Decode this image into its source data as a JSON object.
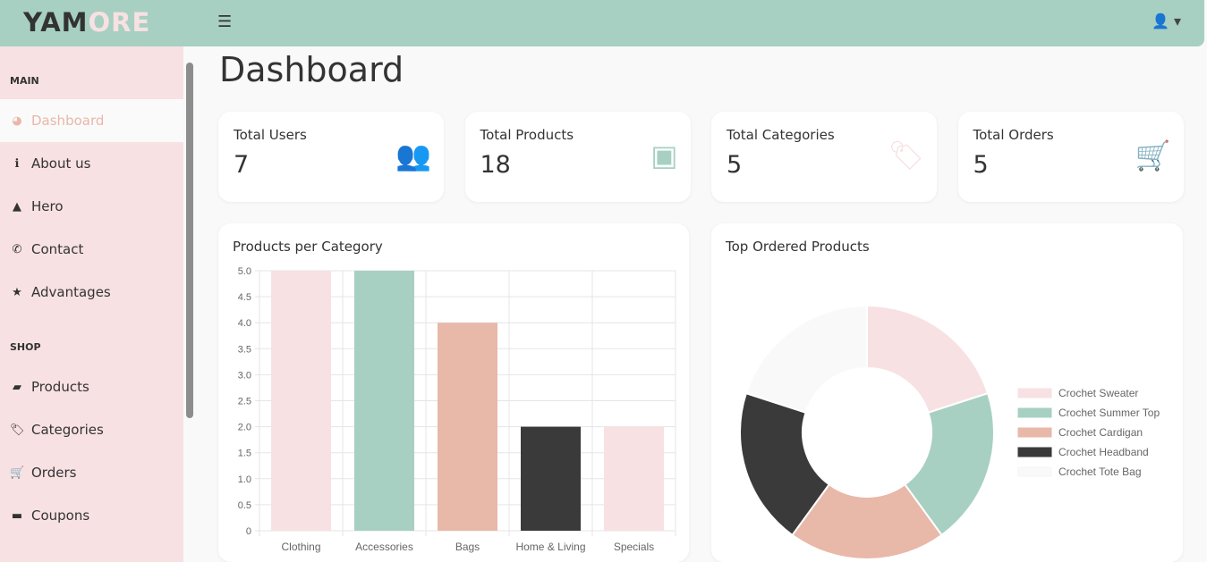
{
  "header": {
    "logo_a": "YAM",
    "logo_b": "ORE",
    "menu_icon": "☰",
    "user_icon": "👤 ▾"
  },
  "sidebar": {
    "sections": [
      {
        "title": "MAIN"
      },
      {
        "title": "SHOP"
      }
    ],
    "items": [
      {
        "label": "Dashboard",
        "icon": "◕"
      },
      {
        "label": "About us",
        "icon": "ℹ"
      },
      {
        "label": "Hero",
        "icon": "▲"
      },
      {
        "label": "Contact",
        "icon": "✆"
      },
      {
        "label": "Advantages",
        "icon": "★"
      },
      {
        "label": "Products",
        "icon": "▰"
      },
      {
        "label": "Categories",
        "icon": "🏷"
      },
      {
        "label": "Orders",
        "icon": "🛒"
      },
      {
        "label": "Coupons",
        "icon": "▬"
      }
    ]
  },
  "page": {
    "title": "Dashboard"
  },
  "stats": [
    {
      "label": "Total Users",
      "value": "7",
      "color": "#e8b8a8"
    },
    {
      "label": "Total Products",
      "value": "18",
      "color": "#a7d0c2"
    },
    {
      "label": "Total Categories",
      "value": "5",
      "color": "#f7e1e3"
    },
    {
      "label": "Total Orders",
      "value": "5",
      "color": "#333333"
    }
  ],
  "chart_data": [
    {
      "type": "bar",
      "title": "Products per Category",
      "categories": [
        "Clothing",
        "Accessories",
        "Bags",
        "Home & Living",
        "Specials"
      ],
      "values": [
        5,
        5,
        4,
        2,
        2
      ],
      "colors": [
        "#f7e1e3",
        "#a7d0c2",
        "#e8b8a8",
        "#3a3a3a",
        "#f7e1e3"
      ],
      "ylim": [
        0,
        5
      ],
      "yticks": [
        "0",
        "0.5",
        "1.0",
        "1.5",
        "2.0",
        "2.5",
        "3.0",
        "3.5",
        "4.0",
        "4.5",
        "5.0"
      ],
      "grid": true
    },
    {
      "type": "pie",
      "title": "Top Ordered Products",
      "labels": [
        "Crochet Sweater",
        "Crochet Summer Top",
        " Crochet Cardigan",
        "Crochet Headband",
        "Crochet Tote Bag"
      ],
      "values": [
        1,
        1,
        1,
        1,
        1
      ],
      "colors": [
        "#f7e1e3",
        "#a7d0c2",
        "#e8b8a8",
        "#3a3a3a",
        "#f9f9f9"
      ],
      "legend": "right"
    }
  ]
}
